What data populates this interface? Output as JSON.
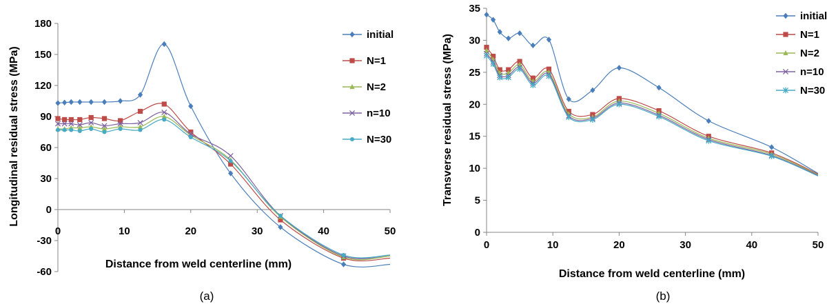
{
  "colors": {
    "initial": "#4a7ebb",
    "N=1": "#be4b48",
    "N=2": "#98b954",
    "n=10": "#7d60a0",
    "N=30": "#46aac5"
  },
  "chart_data": [
    {
      "type": "line",
      "caption": "(a)",
      "xlabel": "Distance from weld centerline (mm)",
      "ylabel": "Longitudinal residual stress (MPa)",
      "xlim": [
        0,
        50
      ],
      "ylim": [
        -60,
        180
      ],
      "xticks": [
        0,
        10,
        20,
        30,
        40,
        50
      ],
      "yticks": [
        -60,
        -30,
        0,
        30,
        60,
        90,
        120,
        150,
        180
      ],
      "legend_position": "top-right",
      "series": [
        {
          "name": "initial",
          "marker": "diamond",
          "x": [
            0,
            1,
            2,
            3.3,
            5,
            7,
            9.4,
            12.4,
            16,
            20,
            26,
            33.5,
            43,
            50
          ],
          "y": [
            103,
            103.5,
            104,
            104,
            104,
            104,
            105,
            111,
            160,
            100,
            35,
            -17,
            -53,
            -53
          ]
        },
        {
          "name": "N=1",
          "marker": "square",
          "x": [
            0,
            1,
            2,
            3.3,
            5,
            7,
            9.4,
            12.4,
            16,
            20,
            26,
            33.5,
            43,
            50
          ],
          "y": [
            88,
            87,
            87,
            87,
            89,
            88,
            86,
            95,
            102,
            75,
            44,
            -10,
            -47,
            -47
          ]
        },
        {
          "name": "N=2",
          "marker": "triangle",
          "x": [
            0,
            1,
            2,
            3.3,
            5,
            7,
            9.4,
            12.4,
            16,
            20,
            26,
            33.5,
            43,
            50
          ],
          "y": [
            78,
            78,
            79,
            79,
            80,
            78,
            80,
            80,
            90,
            72,
            48,
            -7,
            -46,
            -45
          ]
        },
        {
          "name": "n=10",
          "marker": "x",
          "x": [
            0,
            1,
            2,
            3.3,
            5,
            7,
            9.4,
            12.4,
            16,
            20,
            26,
            33.5,
            43,
            50
          ],
          "y": [
            83,
            83,
            83,
            82,
            84,
            81,
            83,
            84,
            94,
            73,
            52,
            -6,
            -45,
            -44
          ]
        },
        {
          "name": "N=30",
          "marker": "circle",
          "x": [
            0,
            1,
            2,
            3.3,
            5,
            7,
            9.4,
            12.4,
            16,
            20,
            26,
            33.5,
            43,
            50
          ],
          "y": [
            77,
            77,
            77,
            76,
            78,
            75,
            78,
            77,
            87,
            70,
            47,
            -6,
            -44,
            -44
          ]
        }
      ]
    },
    {
      "type": "line",
      "caption": "(b)",
      "xlabel": "Distance from weld centerline (mm)",
      "ylabel": "Transverse residual stress (MPa)",
      "xlim": [
        0,
        50
      ],
      "ylim": [
        0,
        35
      ],
      "xticks": [
        0,
        10,
        20,
        30,
        40,
        50
      ],
      "yticks": [
        0,
        5,
        10,
        15,
        20,
        25,
        30,
        35
      ],
      "legend_position": "top-right",
      "series": [
        {
          "name": "initial",
          "marker": "diamond",
          "x": [
            0,
            1,
            2,
            3.3,
            5,
            7,
            9.4,
            12.4,
            16,
            20,
            26,
            33.5,
            43,
            50
          ],
          "y": [
            34,
            33.2,
            31.3,
            30.3,
            31.1,
            29.2,
            30.1,
            20.8,
            22.2,
            25.7,
            22.6,
            17.4,
            13.3,
            9.2
          ]
        },
        {
          "name": "N=1",
          "marker": "square",
          "x": [
            0,
            1,
            2,
            3.3,
            5,
            7,
            9.4,
            12.4,
            16,
            20,
            26,
            33.5,
            43,
            50
          ],
          "y": [
            28.9,
            27.5,
            25.4,
            25.4,
            26.7,
            24.1,
            25.5,
            18.9,
            18.4,
            20.9,
            19.0,
            15.0,
            12.4,
            9.1
          ]
        },
        {
          "name": "N=2",
          "marker": "triangle",
          "x": [
            0,
            1,
            2,
            3.3,
            5,
            7,
            9.4,
            12.4,
            16,
            20,
            26,
            33.5,
            43,
            50
          ],
          "y": [
            28.4,
            27.0,
            24.9,
            24.9,
            26.2,
            23.6,
            25.0,
            18.5,
            18.0,
            20.5,
            18.6,
            14.7,
            12.2,
            9.0
          ]
        },
        {
          "name": "n=10",
          "marker": "x",
          "x": [
            0,
            1,
            2,
            3.3,
            5,
            7,
            9.4,
            12.4,
            16,
            20,
            26,
            33.5,
            43,
            50
          ],
          "y": [
            27.9,
            26.6,
            24.5,
            24.5,
            25.8,
            23.3,
            24.7,
            18.2,
            17.8,
            20.2,
            18.3,
            14.5,
            12.0,
            8.9
          ]
        },
        {
          "name": "N=30",
          "marker": "star",
          "x": [
            0,
            1,
            2,
            3.3,
            5,
            7,
            9.4,
            12.4,
            16,
            20,
            26,
            33.5,
            43,
            50
          ],
          "y": [
            27.6,
            26.3,
            24.2,
            24.2,
            25.5,
            23.0,
            24.4,
            18.0,
            17.6,
            20.0,
            18.1,
            14.3,
            11.9,
            8.8
          ]
        }
      ]
    }
  ]
}
